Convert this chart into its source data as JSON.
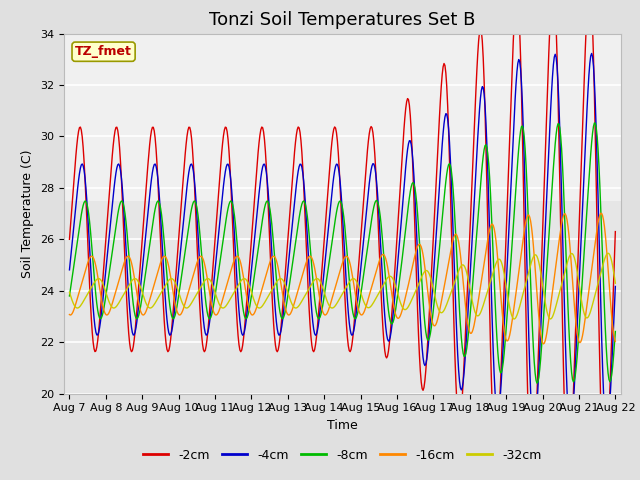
{
  "title": "Tonzi Soil Temperatures Set B",
  "xlabel": "Time",
  "ylabel": "Soil Temperature (C)",
  "ylim": [
    20,
    34
  ],
  "x_tick_labels": [
    "Aug 7",
    "Aug 8",
    "Aug 9",
    "Aug 10",
    "Aug 11",
    "Aug 12",
    "Aug 13",
    "Aug 14",
    "Aug 15",
    "Aug 16",
    "Aug 17",
    "Aug 18",
    "Aug 19",
    "Aug 20",
    "Aug 21",
    "Aug 22"
  ],
  "series_order": [
    "-2cm",
    "-4cm",
    "-8cm",
    "-16cm",
    "-32cm"
  ],
  "colors": {
    "-2cm": "#dd0000",
    "-4cm": "#0000cc",
    "-8cm": "#00bb00",
    "-16cm": "#ff8800",
    "-32cm": "#cccc00"
  },
  "amplitude": {
    "-2cm": 4.2,
    "-4cm": 3.2,
    "-8cm": 2.2,
    "-16cm": 1.1,
    "-32cm": 0.55
  },
  "mean_base": {
    "-2cm": 26.0,
    "-4cm": 25.6,
    "-8cm": 25.2,
    "-16cm": 24.2,
    "-32cm": 23.9
  },
  "phase_shift": {
    "-2cm": 0.0,
    "-4cm": 0.35,
    "-8cm": 0.9,
    "-16cm": 2.0,
    "-32cm": 3.2
  },
  "annotation_text": "TZ_fmet",
  "title_fontsize": 13,
  "axis_fontsize": 9,
  "tick_fontsize": 8,
  "legend_fontsize": 9,
  "fig_bg": "#e0e0e0",
  "plot_bg": "#ebebeb",
  "n_points": 600
}
